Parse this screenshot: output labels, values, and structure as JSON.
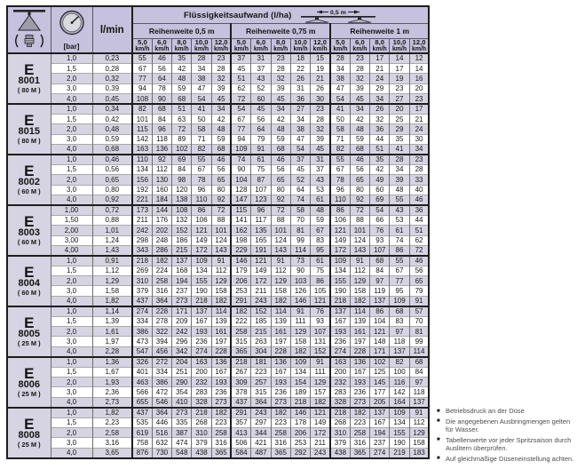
{
  "colors": {
    "header_bg": "#c6c1dc",
    "stripe_bg": "#d6d4e2",
    "thick_border": "#1d1d1d",
    "thin_vertical": "#6e6e6e",
    "thin_horizontal": "#a9a9a9"
  },
  "header": {
    "pressure_unit": "[bar]",
    "flow_unit": "l/min",
    "main_title": "Flüssigkeitsaufwand (l/ha)",
    "diagram_label": "0,5 m",
    "groups": [
      "Reihenweite 0,5 m",
      "Reihenweite 0,75 m",
      "Reihenweite 1 m"
    ],
    "speeds": [
      "5,0",
      "6,0",
      "8,0",
      "10,0",
      "12,0"
    ],
    "speed_unit": "km/h"
  },
  "nozzles": [
    {
      "series": "E",
      "code": "8001",
      "size": "( 80 M )",
      "rows": [
        {
          "bar": "1,0",
          "lmin": "0,23",
          "lha": [
            55,
            46,
            35,
            28,
            23,
            37,
            31,
            23,
            18,
            15,
            28,
            23,
            17,
            14,
            12
          ]
        },
        {
          "bar": "1,5",
          "lmin": "0,28",
          "lha": [
            67,
            56,
            42,
            34,
            28,
            45,
            37,
            28,
            22,
            19,
            34,
            28,
            21,
            17,
            14
          ]
        },
        {
          "bar": "2,0",
          "lmin": "0,32",
          "lha": [
            77,
            64,
            48,
            38,
            32,
            51,
            43,
            32,
            26,
            21,
            38,
            32,
            24,
            19,
            16
          ]
        },
        {
          "bar": "3,0",
          "lmin": "0,39",
          "lha": [
            94,
            78,
            59,
            47,
            39,
            62,
            52,
            39,
            31,
            26,
            47,
            39,
            29,
            23,
            20
          ]
        },
        {
          "bar": "4,0",
          "lmin": "0,45",
          "lha": [
            108,
            90,
            68,
            54,
            45,
            72,
            60,
            45,
            36,
            30,
            54,
            45,
            34,
            27,
            23
          ]
        }
      ]
    },
    {
      "series": "E",
      "code": "8015",
      "size": "( 80 M )",
      "rows": [
        {
          "bar": "1,0",
          "lmin": "0,34",
          "lha": [
            82,
            68,
            51,
            41,
            34,
            54,
            45,
            34,
            27,
            23,
            41,
            34,
            26,
            20,
            17
          ]
        },
        {
          "bar": "1,5",
          "lmin": "0,42",
          "lha": [
            101,
            84,
            63,
            50,
            42,
            67,
            56,
            42,
            34,
            28,
            50,
            42,
            32,
            25,
            21
          ]
        },
        {
          "bar": "2,0",
          "lmin": "0,48",
          "lha": [
            115,
            96,
            72,
            58,
            48,
            77,
            64,
            48,
            38,
            32,
            58,
            48,
            36,
            29,
            24
          ]
        },
        {
          "bar": "3,0",
          "lmin": "0,59",
          "lha": [
            142,
            118,
            89,
            71,
            59,
            94,
            79,
            59,
            47,
            39,
            71,
            59,
            44,
            35,
            30
          ]
        },
        {
          "bar": "4,0",
          "lmin": "0,68",
          "lha": [
            163,
            136,
            102,
            82,
            68,
            109,
            91,
            68,
            54,
            45,
            82,
            68,
            51,
            41,
            34
          ]
        }
      ]
    },
    {
      "series": "E",
      "code": "8002",
      "size": "( 60 M )",
      "rows": [
        {
          "bar": "1,0",
          "lmin": "0,46",
          "lha": [
            110,
            92,
            69,
            55,
            46,
            74,
            61,
            46,
            37,
            31,
            55,
            46,
            35,
            28,
            23
          ]
        },
        {
          "bar": "1,5",
          "lmin": "0,56",
          "lha": [
            134,
            112,
            84,
            67,
            56,
            90,
            75,
            56,
            45,
            37,
            67,
            56,
            42,
            34,
            28
          ]
        },
        {
          "bar": "2,0",
          "lmin": "0,65",
          "lha": [
            156,
            130,
            98,
            78,
            65,
            104,
            87,
            65,
            52,
            43,
            78,
            65,
            49,
            39,
            33
          ]
        },
        {
          "bar": "3,0",
          "lmin": "0,80",
          "lha": [
            192,
            160,
            120,
            96,
            80,
            128,
            107,
            80,
            64,
            53,
            96,
            80,
            60,
            48,
            40
          ]
        },
        {
          "bar": "4,0",
          "lmin": "0,92",
          "lha": [
            221,
            184,
            138,
            110,
            92,
            147,
            123,
            92,
            74,
            61,
            110,
            92,
            69,
            55,
            46
          ]
        }
      ]
    },
    {
      "series": "E",
      "code": "8003",
      "size": "( 60 M )",
      "rows": [
        {
          "bar": "1,00",
          "lmin": "0,72",
          "lha": [
            173,
            144,
            108,
            86,
            72,
            115,
            96,
            72,
            58,
            48,
            86,
            72,
            54,
            43,
            36
          ]
        },
        {
          "bar": "1,50",
          "lmin": "0,88",
          "lha": [
            211,
            176,
            132,
            106,
            88,
            141,
            117,
            88,
            70,
            59,
            106,
            88,
            66,
            53,
            44
          ]
        },
        {
          "bar": "2,00",
          "lmin": "1,01",
          "lha": [
            242,
            202,
            152,
            121,
            101,
            162,
            135,
            101,
            81,
            67,
            121,
            101,
            76,
            61,
            51
          ]
        },
        {
          "bar": "3,00",
          "lmin": "1,24",
          "lha": [
            298,
            248,
            186,
            149,
            124,
            198,
            165,
            124,
            99,
            83,
            149,
            124,
            93,
            74,
            62
          ]
        },
        {
          "bar": "4,00",
          "lmin": "1,43",
          "lha": [
            343,
            286,
            215,
            172,
            143,
            229,
            191,
            143,
            114,
            95,
            172,
            143,
            107,
            86,
            72
          ]
        }
      ]
    },
    {
      "series": "E",
      "code": "8004",
      "size": "( 60 M )",
      "rows": [
        {
          "bar": "1,0",
          "lmin": "0,91",
          "lha": [
            218,
            182,
            137,
            109,
            91,
            146,
            121,
            91,
            73,
            61,
            109,
            91,
            68,
            55,
            46
          ]
        },
        {
          "bar": "1,5",
          "lmin": "1,12",
          "lha": [
            269,
            224,
            168,
            134,
            112,
            179,
            149,
            112,
            90,
            75,
            134,
            112,
            84,
            67,
            56
          ]
        },
        {
          "bar": "2,0",
          "lmin": "1,29",
          "lha": [
            310,
            258,
            194,
            155,
            129,
            206,
            172,
            129,
            103,
            86,
            155,
            129,
            97,
            77,
            65
          ]
        },
        {
          "bar": "3,0",
          "lmin": "1,58",
          "lha": [
            379,
            316,
            237,
            190,
            158,
            253,
            211,
            158,
            126,
            105,
            190,
            158,
            119,
            95,
            79
          ]
        },
        {
          "bar": "4,0",
          "lmin": "1,82",
          "lha": [
            437,
            364,
            273,
            218,
            182,
            291,
            243,
            182,
            146,
            121,
            218,
            182,
            137,
            109,
            91
          ]
        }
      ]
    },
    {
      "series": "E",
      "code": "8005",
      "size": "( 25 M )",
      "rows": [
        {
          "bar": "1,0",
          "lmin": "1,14",
          "lha": [
            274,
            228,
            171,
            137,
            114,
            182,
            152,
            114,
            91,
            76,
            137,
            114,
            86,
            68,
            57
          ]
        },
        {
          "bar": "1,5",
          "lmin": "1,39",
          "lha": [
            334,
            278,
            209,
            167,
            139,
            222,
            185,
            139,
            111,
            93,
            167,
            139,
            104,
            83,
            70
          ]
        },
        {
          "bar": "2,0",
          "lmin": "1,61",
          "lha": [
            386,
            322,
            242,
            193,
            161,
            258,
            215,
            161,
            129,
            107,
            193,
            161,
            121,
            97,
            81
          ]
        },
        {
          "bar": "3,0",
          "lmin": "1,97",
          "lha": [
            473,
            394,
            296,
            236,
            197,
            315,
            263,
            197,
            158,
            131,
            236,
            197,
            148,
            118,
            99
          ]
        },
        {
          "bar": "4,0",
          "lmin": "2,28",
          "lha": [
            547,
            456,
            342,
            274,
            228,
            365,
            304,
            228,
            182,
            152,
            274,
            228,
            171,
            137,
            114
          ]
        }
      ]
    },
    {
      "series": "E",
      "code": "8006",
      "size": "( 25 M )",
      "rows": [
        {
          "bar": "1,0",
          "lmin": "1,36",
          "lha": [
            326,
            272,
            204,
            163,
            136,
            218,
            181,
            136,
            109,
            91,
            163,
            136,
            102,
            82,
            68
          ]
        },
        {
          "bar": "1,5",
          "lmin": "1,67",
          "lha": [
            401,
            334,
            251,
            200,
            167,
            267,
            223,
            167,
            134,
            111,
            200,
            167,
            125,
            100,
            84
          ]
        },
        {
          "bar": "2,0",
          "lmin": "1,93",
          "lha": [
            463,
            386,
            290,
            232,
            193,
            309,
            257,
            193,
            154,
            129,
            232,
            193,
            145,
            116,
            97
          ]
        },
        {
          "bar": "3,0",
          "lmin": "2,36",
          "lha": [
            566,
            472,
            354,
            283,
            236,
            378,
            315,
            236,
            189,
            157,
            283,
            236,
            177,
            142,
            118
          ]
        },
        {
          "bar": "4,0",
          "lmin": "2,73",
          "lha": [
            655,
            546,
            410,
            328,
            273,
            437,
            364,
            273,
            218,
            182,
            328,
            273,
            205,
            164,
            137
          ]
        }
      ]
    },
    {
      "series": "E",
      "code": "8008",
      "size": "( 25 M )",
      "rows": [
        {
          "bar": "1,0",
          "lmin": "1,82",
          "lha": [
            437,
            364,
            273,
            218,
            182,
            291,
            243,
            182,
            146,
            121,
            218,
            182,
            137,
            109,
            91
          ]
        },
        {
          "bar": "1,5",
          "lmin": "2,23",
          "lha": [
            535,
            446,
            335,
            268,
            223,
            357,
            297,
            223,
            178,
            149,
            268,
            223,
            167,
            134,
            112
          ]
        },
        {
          "bar": "2,0",
          "lmin": "2,58",
          "lha": [
            619,
            516,
            387,
            310,
            258,
            413,
            344,
            258,
            206,
            172,
            310,
            258,
            194,
            155,
            129
          ]
        },
        {
          "bar": "3,0",
          "lmin": "3,16",
          "lha": [
            758,
            632,
            474,
            379,
            316,
            506,
            421,
            316,
            253,
            211,
            379,
            316,
            237,
            190,
            158
          ]
        },
        {
          "bar": "4,0",
          "lmin": "3,65",
          "lha": [
            876,
            730,
            548,
            438,
            365,
            584,
            487,
            365,
            292,
            243,
            438,
            365,
            274,
            219,
            183
          ]
        }
      ]
    }
  ],
  "footnote_bullet": "■",
  "footnotes": [
    "Betriebsdruck an der Düse",
    "Die angegebenen Ausbringmengen gelten für Wasser.",
    "Tabellenwerte vor jeder Spritzsaison durch Auslitern überprüfen.",
    "Auf gleichmäßige Düseneinstellung achten."
  ]
}
